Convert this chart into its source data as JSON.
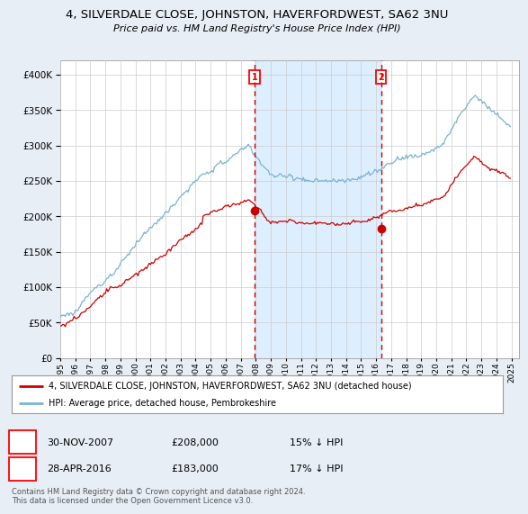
{
  "title_line1": "4, SILVERDALE CLOSE, JOHNSTON, HAVERFORDWEST, SA62 3NU",
  "title_line2": "Price paid vs. HM Land Registry's House Price Index (HPI)",
  "background_color": "#e8eef5",
  "plot_bg_color": "#ffffff",
  "grid_color": "#cccccc",
  "hpi_color": "#7ab3d4",
  "price_color": "#cc0000",
  "sale1_year": 2007.917,
  "sale1_price": 208000,
  "sale2_year": 2016.33,
  "sale2_price": 183000,
  "vline_color": "#cc0000",
  "shade_color": "#ddeeff",
  "legend_entry1": "4, SILVERDALE CLOSE, JOHNSTON, HAVERFORDWEST, SA62 3NU (detached house)",
  "legend_entry2": "HPI: Average price, detached house, Pembrokeshire",
  "footer": "Contains HM Land Registry data © Crown copyright and database right 2024.\nThis data is licensed under the Open Government Licence v3.0.",
  "ylim": [
    0,
    420000
  ],
  "xlim_start": 1995.0,
  "xlim_end": 2025.5,
  "yticks": [
    0,
    50000,
    100000,
    150000,
    200000,
    250000,
    300000,
    350000,
    400000
  ]
}
